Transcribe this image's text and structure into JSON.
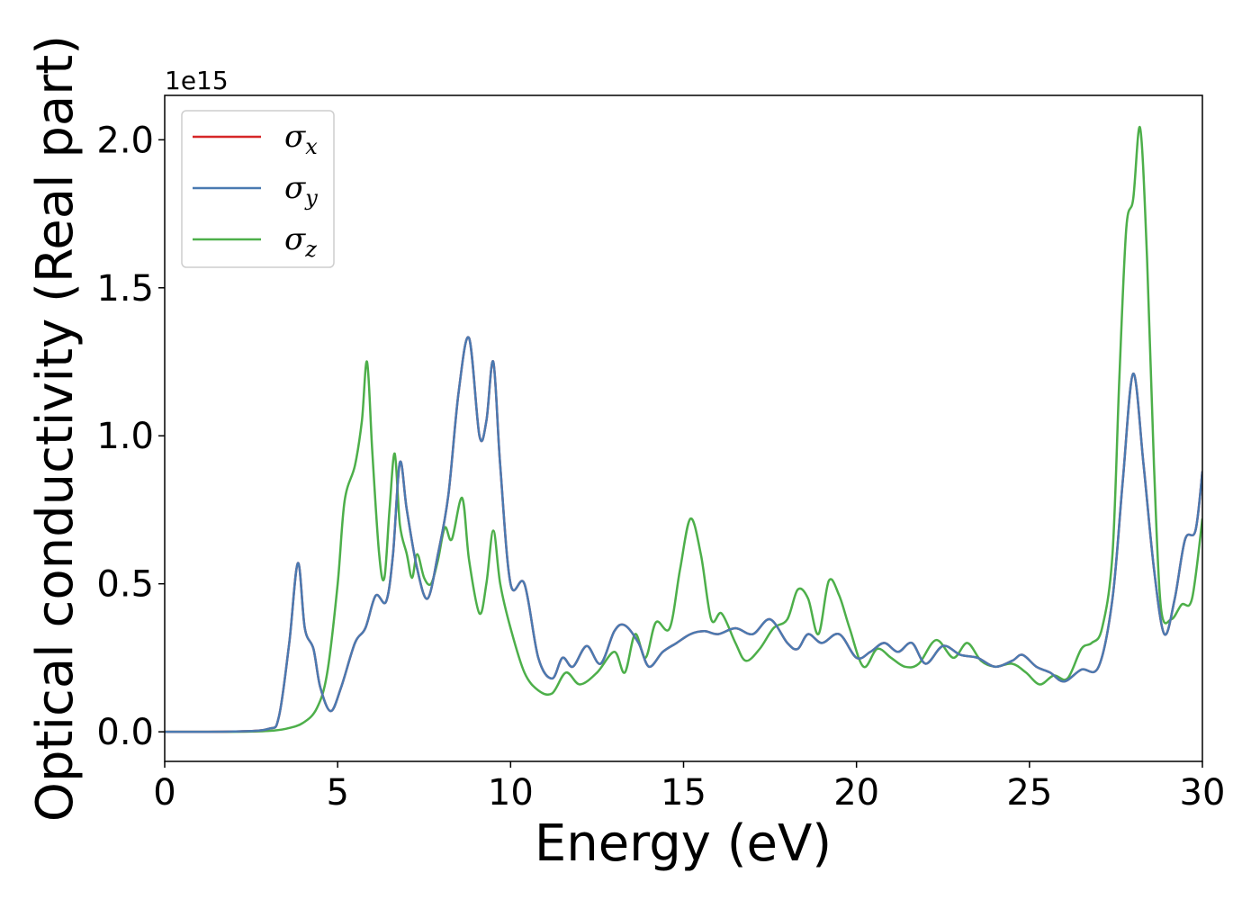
{
  "chart_data": {
    "type": "line",
    "xlabel": "Energy (eV)",
    "ylabel": "Optical conductivity (Real part)",
    "y_offset_label": "1e15",
    "xlim": [
      0,
      30
    ],
    "ylim": [
      -0.1,
      2.15
    ],
    "x_ticks": [
      0,
      5,
      10,
      15,
      20,
      25,
      30
    ],
    "x_tick_labels": [
      "0",
      "5",
      "10",
      "15",
      "20",
      "25",
      "30"
    ],
    "y_ticks": [
      0.0,
      0.5,
      1.0,
      1.5,
      2.0
    ],
    "y_tick_labels": [
      "0.0",
      "0.5",
      "1.0",
      "1.5",
      "2.0"
    ],
    "grid": false,
    "legend_position": "top-left",
    "series": [
      {
        "name": "σx",
        "label_base": "σ",
        "label_sub": "x",
        "color": "#d62728",
        "points": [
          [
            0,
            0
          ],
          [
            2,
            0.001
          ],
          [
            3,
            0.01
          ],
          [
            3.3,
            0.05
          ],
          [
            3.6,
            0.3
          ],
          [
            3.85,
            0.57
          ],
          [
            4.05,
            0.35
          ],
          [
            4.3,
            0.28
          ],
          [
            4.5,
            0.15
          ],
          [
            4.8,
            0.07
          ],
          [
            5.1,
            0.15
          ],
          [
            5.5,
            0.3
          ],
          [
            5.8,
            0.35
          ],
          [
            6.1,
            0.46
          ],
          [
            6.4,
            0.44
          ],
          [
            6.6,
            0.6
          ],
          [
            6.8,
            0.91
          ],
          [
            7.0,
            0.75
          ],
          [
            7.3,
            0.55
          ],
          [
            7.6,
            0.45
          ],
          [
            7.9,
            0.6
          ],
          [
            8.2,
            0.8
          ],
          [
            8.5,
            1.15
          ],
          [
            8.8,
            1.33
          ],
          [
            9.1,
            1.0
          ],
          [
            9.3,
            1.05
          ],
          [
            9.5,
            1.25
          ],
          [
            9.7,
            0.9
          ],
          [
            10.0,
            0.5
          ],
          [
            10.4,
            0.5
          ],
          [
            10.8,
            0.25
          ],
          [
            11.2,
            0.18
          ],
          [
            11.5,
            0.25
          ],
          [
            11.8,
            0.22
          ],
          [
            12.2,
            0.29
          ],
          [
            12.6,
            0.23
          ],
          [
            13.0,
            0.34
          ],
          [
            13.3,
            0.36
          ],
          [
            13.7,
            0.3
          ],
          [
            14.0,
            0.22
          ],
          [
            14.4,
            0.27
          ],
          [
            14.8,
            0.3
          ],
          [
            15.2,
            0.33
          ],
          [
            15.6,
            0.34
          ],
          [
            16.0,
            0.33
          ],
          [
            16.5,
            0.35
          ],
          [
            17.0,
            0.33
          ],
          [
            17.5,
            0.38
          ],
          [
            18.0,
            0.3
          ],
          [
            18.3,
            0.28
          ],
          [
            18.6,
            0.33
          ],
          [
            19.0,
            0.3
          ],
          [
            19.5,
            0.33
          ],
          [
            20.0,
            0.25
          ],
          [
            20.4,
            0.27
          ],
          [
            20.8,
            0.3
          ],
          [
            21.2,
            0.27
          ],
          [
            21.6,
            0.3
          ],
          [
            22.0,
            0.23
          ],
          [
            22.5,
            0.29
          ],
          [
            23.0,
            0.26
          ],
          [
            23.5,
            0.25
          ],
          [
            24.0,
            0.22
          ],
          [
            24.5,
            0.24
          ],
          [
            24.8,
            0.26
          ],
          [
            25.2,
            0.22
          ],
          [
            25.6,
            0.2
          ],
          [
            26.0,
            0.17
          ],
          [
            26.5,
            0.21
          ],
          [
            27.0,
            0.22
          ],
          [
            27.4,
            0.45
          ],
          [
            27.7,
            0.85
          ],
          [
            28.0,
            1.21
          ],
          [
            28.3,
            0.9
          ],
          [
            28.6,
            0.55
          ],
          [
            28.9,
            0.33
          ],
          [
            29.2,
            0.45
          ],
          [
            29.5,
            0.65
          ],
          [
            29.8,
            0.68
          ],
          [
            30.0,
            0.88
          ]
        ]
      },
      {
        "name": "σy",
        "label_base": "σ",
        "label_sub": "y",
        "color": "#4a7ab1",
        "points": [
          [
            0,
            0
          ],
          [
            2,
            0.001
          ],
          [
            3,
            0.01
          ],
          [
            3.3,
            0.05
          ],
          [
            3.6,
            0.3
          ],
          [
            3.85,
            0.57
          ],
          [
            4.05,
            0.35
          ],
          [
            4.3,
            0.28
          ],
          [
            4.5,
            0.15
          ],
          [
            4.8,
            0.07
          ],
          [
            5.1,
            0.15
          ],
          [
            5.5,
            0.3
          ],
          [
            5.8,
            0.35
          ],
          [
            6.1,
            0.46
          ],
          [
            6.4,
            0.44
          ],
          [
            6.6,
            0.6
          ],
          [
            6.8,
            0.91
          ],
          [
            7.0,
            0.75
          ],
          [
            7.3,
            0.55
          ],
          [
            7.6,
            0.45
          ],
          [
            7.9,
            0.6
          ],
          [
            8.2,
            0.8
          ],
          [
            8.5,
            1.15
          ],
          [
            8.8,
            1.33
          ],
          [
            9.1,
            1.0
          ],
          [
            9.3,
            1.05
          ],
          [
            9.5,
            1.25
          ],
          [
            9.7,
            0.9
          ],
          [
            10.0,
            0.5
          ],
          [
            10.4,
            0.5
          ],
          [
            10.8,
            0.25
          ],
          [
            11.2,
            0.18
          ],
          [
            11.5,
            0.25
          ],
          [
            11.8,
            0.22
          ],
          [
            12.2,
            0.29
          ],
          [
            12.6,
            0.23
          ],
          [
            13.0,
            0.34
          ],
          [
            13.3,
            0.36
          ],
          [
            13.7,
            0.3
          ],
          [
            14.0,
            0.22
          ],
          [
            14.4,
            0.27
          ],
          [
            14.8,
            0.3
          ],
          [
            15.2,
            0.33
          ],
          [
            15.6,
            0.34
          ],
          [
            16.0,
            0.33
          ],
          [
            16.5,
            0.35
          ],
          [
            17.0,
            0.33
          ],
          [
            17.5,
            0.38
          ],
          [
            18.0,
            0.3
          ],
          [
            18.3,
            0.28
          ],
          [
            18.6,
            0.33
          ],
          [
            19.0,
            0.3
          ],
          [
            19.5,
            0.33
          ],
          [
            20.0,
            0.25
          ],
          [
            20.4,
            0.27
          ],
          [
            20.8,
            0.3
          ],
          [
            21.2,
            0.27
          ],
          [
            21.6,
            0.3
          ],
          [
            22.0,
            0.23
          ],
          [
            22.5,
            0.29
          ],
          [
            23.0,
            0.26
          ],
          [
            23.5,
            0.25
          ],
          [
            24.0,
            0.22
          ],
          [
            24.5,
            0.24
          ],
          [
            24.8,
            0.26
          ],
          [
            25.2,
            0.22
          ],
          [
            25.6,
            0.2
          ],
          [
            26.0,
            0.17
          ],
          [
            26.5,
            0.21
          ],
          [
            27.0,
            0.22
          ],
          [
            27.4,
            0.45
          ],
          [
            27.7,
            0.85
          ],
          [
            28.0,
            1.21
          ],
          [
            28.3,
            0.9
          ],
          [
            28.6,
            0.55
          ],
          [
            28.9,
            0.33
          ],
          [
            29.2,
            0.45
          ],
          [
            29.5,
            0.65
          ],
          [
            29.8,
            0.68
          ],
          [
            30.0,
            0.88
          ]
        ]
      },
      {
        "name": "σz",
        "label_base": "σ",
        "label_sub": "z",
        "color": "#4daf4a",
        "points": [
          [
            0,
            0
          ],
          [
            2,
            0
          ],
          [
            3,
            0.003
          ],
          [
            3.5,
            0.01
          ],
          [
            4.0,
            0.03
          ],
          [
            4.4,
            0.08
          ],
          [
            4.7,
            0.2
          ],
          [
            5.0,
            0.5
          ],
          [
            5.2,
            0.78
          ],
          [
            5.5,
            0.9
          ],
          [
            5.7,
            1.05
          ],
          [
            5.85,
            1.25
          ],
          [
            6.0,
            0.95
          ],
          [
            6.2,
            0.6
          ],
          [
            6.35,
            0.52
          ],
          [
            6.5,
            0.75
          ],
          [
            6.65,
            0.94
          ],
          [
            6.8,
            0.7
          ],
          [
            7.0,
            0.6
          ],
          [
            7.15,
            0.52
          ],
          [
            7.3,
            0.6
          ],
          [
            7.5,
            0.52
          ],
          [
            7.7,
            0.5
          ],
          [
            7.9,
            0.58
          ],
          [
            8.1,
            0.69
          ],
          [
            8.3,
            0.65
          ],
          [
            8.6,
            0.79
          ],
          [
            8.8,
            0.58
          ],
          [
            9.1,
            0.4
          ],
          [
            9.3,
            0.5
          ],
          [
            9.5,
            0.68
          ],
          [
            9.7,
            0.5
          ],
          [
            10.0,
            0.35
          ],
          [
            10.4,
            0.2
          ],
          [
            10.8,
            0.14
          ],
          [
            11.2,
            0.13
          ],
          [
            11.6,
            0.2
          ],
          [
            12.0,
            0.16
          ],
          [
            12.5,
            0.2
          ],
          [
            13.0,
            0.27
          ],
          [
            13.3,
            0.2
          ],
          [
            13.6,
            0.33
          ],
          [
            13.9,
            0.25
          ],
          [
            14.2,
            0.37
          ],
          [
            14.6,
            0.35
          ],
          [
            14.9,
            0.55
          ],
          [
            15.2,
            0.72
          ],
          [
            15.5,
            0.6
          ],
          [
            15.8,
            0.38
          ],
          [
            16.1,
            0.4
          ],
          [
            16.5,
            0.3
          ],
          [
            16.8,
            0.24
          ],
          [
            17.2,
            0.28
          ],
          [
            17.6,
            0.35
          ],
          [
            18.0,
            0.38
          ],
          [
            18.3,
            0.48
          ],
          [
            18.6,
            0.45
          ],
          [
            18.9,
            0.33
          ],
          [
            19.2,
            0.51
          ],
          [
            19.5,
            0.46
          ],
          [
            19.8,
            0.35
          ],
          [
            20.2,
            0.22
          ],
          [
            20.6,
            0.28
          ],
          [
            21.0,
            0.25
          ],
          [
            21.4,
            0.22
          ],
          [
            21.8,
            0.23
          ],
          [
            22.3,
            0.31
          ],
          [
            22.8,
            0.25
          ],
          [
            23.2,
            0.3
          ],
          [
            23.6,
            0.24
          ],
          [
            24.0,
            0.22
          ],
          [
            24.5,
            0.23
          ],
          [
            24.9,
            0.2
          ],
          [
            25.3,
            0.16
          ],
          [
            25.7,
            0.19
          ],
          [
            26.1,
            0.18
          ],
          [
            26.5,
            0.28
          ],
          [
            26.8,
            0.3
          ],
          [
            27.1,
            0.35
          ],
          [
            27.4,
            0.6
          ],
          [
            27.6,
            1.2
          ],
          [
            27.8,
            1.7
          ],
          [
            28.0,
            1.8
          ],
          [
            28.2,
            2.04
          ],
          [
            28.4,
            1.6
          ],
          [
            28.6,
            0.9
          ],
          [
            28.8,
            0.42
          ],
          [
            29.1,
            0.38
          ],
          [
            29.4,
            0.43
          ],
          [
            29.7,
            0.45
          ],
          [
            30.0,
            0.72
          ]
        ]
      }
    ]
  }
}
